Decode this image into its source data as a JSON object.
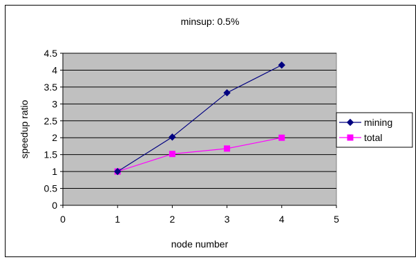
{
  "chart_data": {
    "type": "line",
    "title": "minsup: 0.5%",
    "xlabel": "node number",
    "ylabel": "speedup ratio",
    "xlim": [
      0,
      5
    ],
    "ylim": [
      0,
      4.5
    ],
    "xticks": [
      "0",
      "1",
      "2",
      "3",
      "4",
      "5"
    ],
    "yticks": [
      "0",
      "0.5",
      "1",
      "1.5",
      "2",
      "2.5",
      "3",
      "3.5",
      "4",
      "4.5"
    ],
    "grid": "horizontal",
    "plot_background": "#c0c0c0",
    "legend_position": "right",
    "series": [
      {
        "name": "mining",
        "color": "#000080",
        "marker": "diamond",
        "x": [
          1,
          2,
          3,
          4
        ],
        "y": [
          1.0,
          2.02,
          3.33,
          4.15
        ]
      },
      {
        "name": "total",
        "color": "#ff00ff",
        "marker": "square",
        "x": [
          1,
          2,
          3,
          4
        ],
        "y": [
          1.0,
          1.52,
          1.68,
          2.0
        ]
      }
    ]
  }
}
